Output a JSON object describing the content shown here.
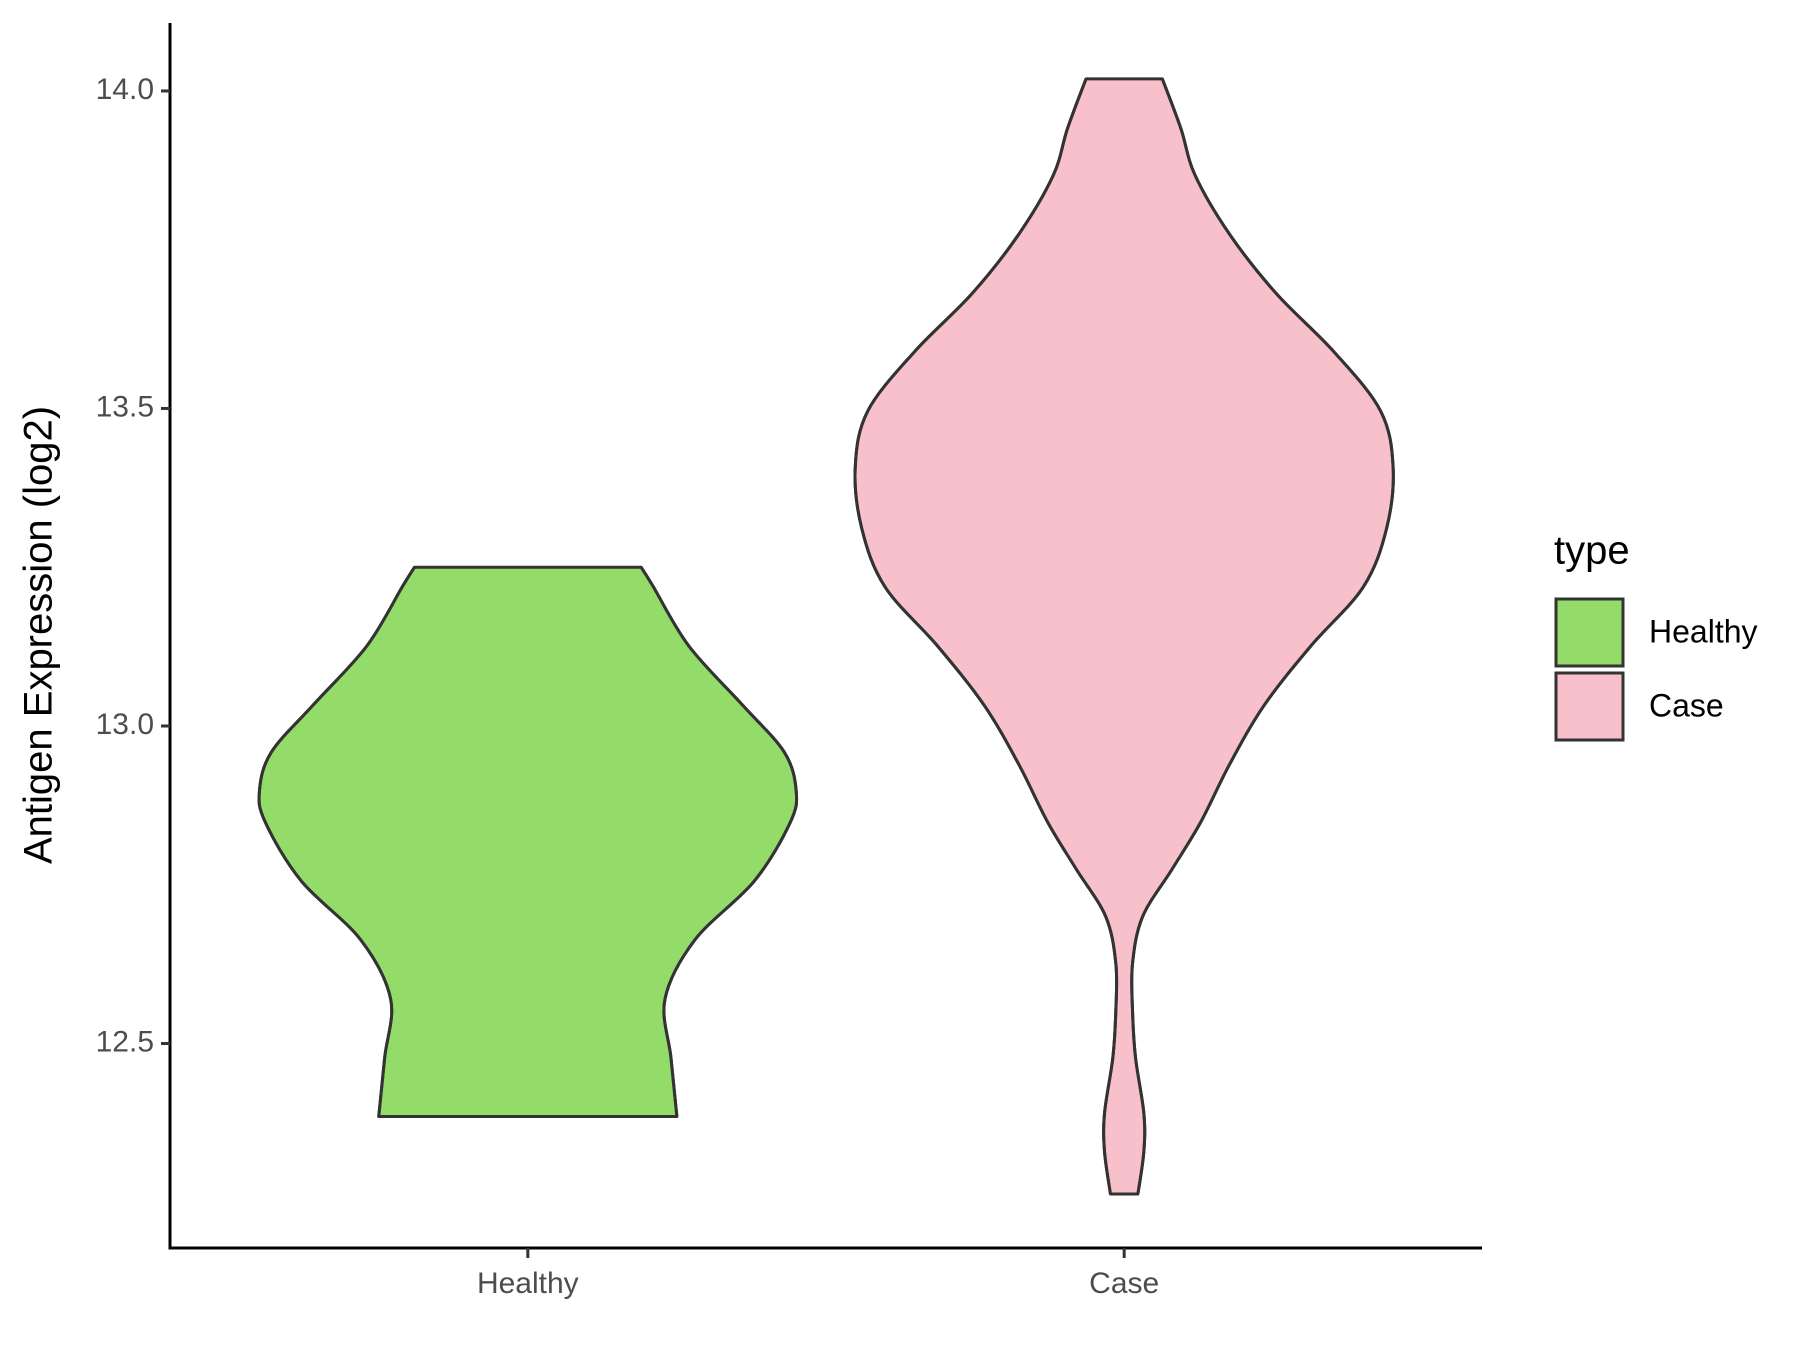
{
  "chart_data": {
    "type": "violin",
    "y_label": "Antigen Expression (log2)",
    "categories": [
      "Healthy",
      "Case"
    ],
    "ylim": [
      12.178,
      14.107
    ],
    "yticks": [
      {
        "value": 12.5,
        "label": "12.5"
      },
      {
        "value": 13,
        "label": "13.0"
      },
      {
        "value": 13.5,
        "label": "13.5"
      },
      {
        "value": 14,
        "label": "14.0"
      }
    ],
    "legend_title": "type",
    "legend_position": "right",
    "series": [
      {
        "name": "Healthy",
        "color": "#93dc6a",
        "y": [
          12.385,
          12.478,
          12.57,
          12.663,
          12.756,
          12.848,
          12.898,
          12.959,
          13.033,
          13.126,
          13.22,
          13.25
        ],
        "width": [
          0.25,
          0.24,
          0.23,
          0.28,
          0.38,
          0.44,
          0.45,
          0.43,
          0.36,
          0.27,
          0.21,
          0.19
        ]
      },
      {
        "name": "Case",
        "color": "#f8c0cb",
        "y": [
          12.263,
          12.33,
          12.39,
          12.478,
          12.552,
          12.626,
          12.7,
          12.774,
          12.848,
          12.94,
          13.033,
          13.126,
          13.219,
          13.311,
          13.407,
          13.496,
          13.589,
          13.681,
          13.774,
          13.867,
          13.941,
          14.019
        ],
        "width": [
          0.023,
          0.033,
          0.033,
          0.019,
          0.014,
          0.014,
          0.031,
          0.08,
          0.128,
          0.177,
          0.235,
          0.313,
          0.401,
          0.44,
          0.451,
          0.43,
          0.352,
          0.255,
          0.177,
          0.119,
          0.095,
          0.064
        ]
      }
    ]
  }
}
